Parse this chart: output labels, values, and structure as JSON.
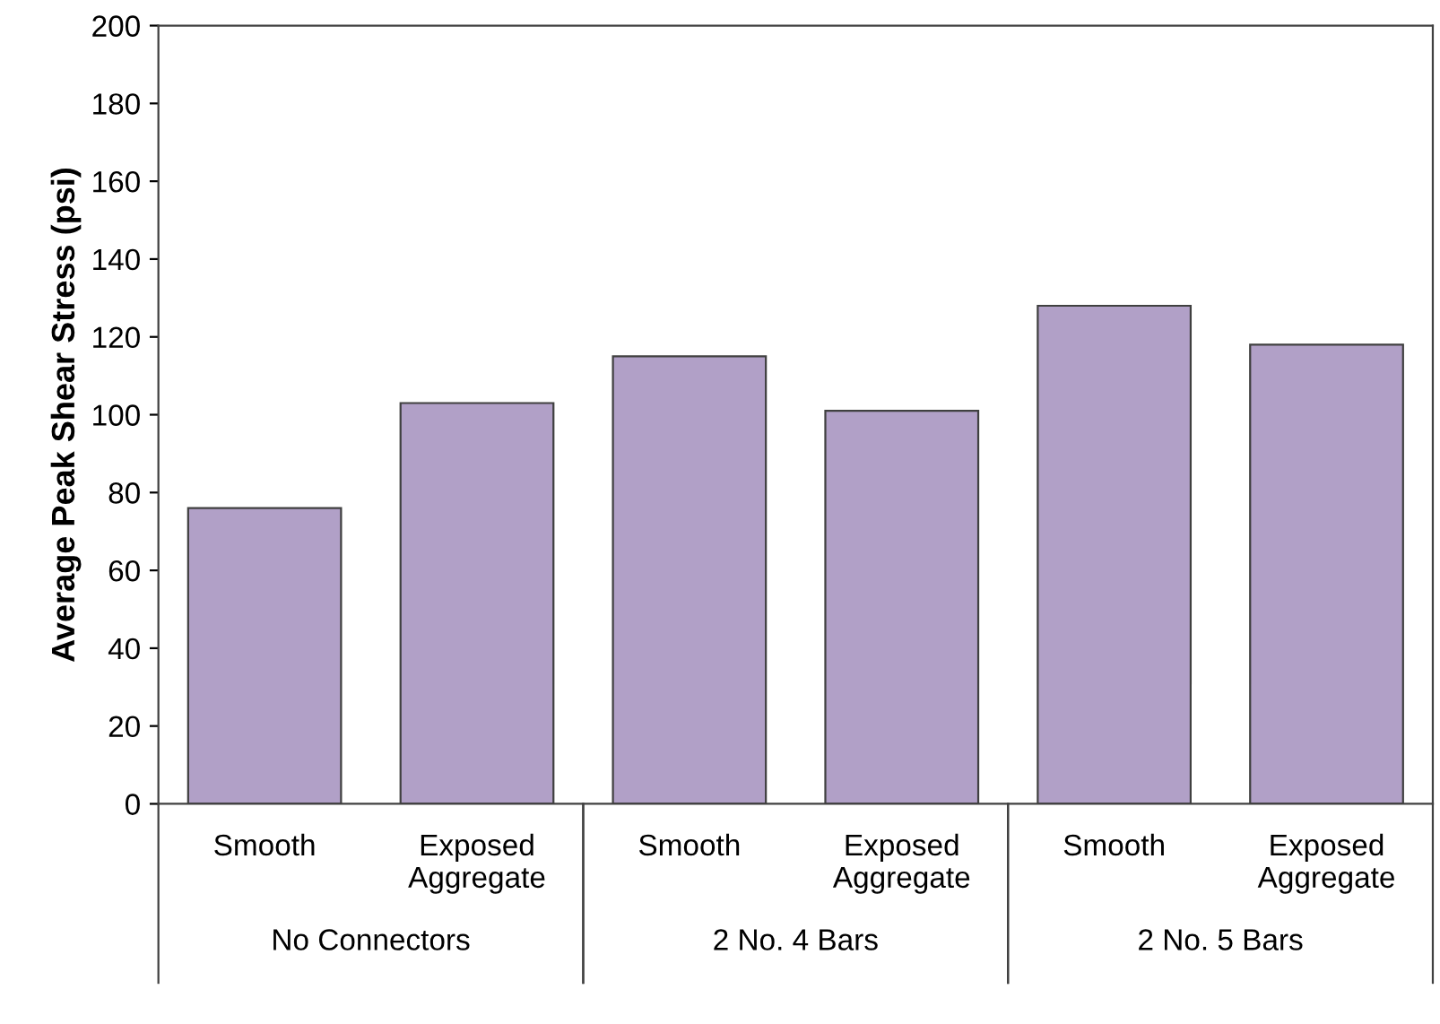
{
  "chart_data": {
    "type": "bar",
    "ylabel": "Average Peak Shear Stress (psi)",
    "categories": [
      "Smooth",
      "Exposed\nAggregate",
      "Smooth",
      "Exposed\nAggregate",
      "Smooth",
      "Exposed\nAggregate"
    ],
    "values": [
      76,
      103,
      115,
      101,
      128,
      118
    ],
    "color": "#b1a0c7",
    "ylim": [
      0,
      200
    ],
    "yticks": [
      0,
      20,
      40,
      60,
      80,
      100,
      120,
      140,
      160,
      180,
      200
    ],
    "grid": false,
    "legend": false,
    "annotations": [
      "No Connectors",
      "2 No. 4 Bars",
      "2 No. 5 Bars"
    ]
  }
}
